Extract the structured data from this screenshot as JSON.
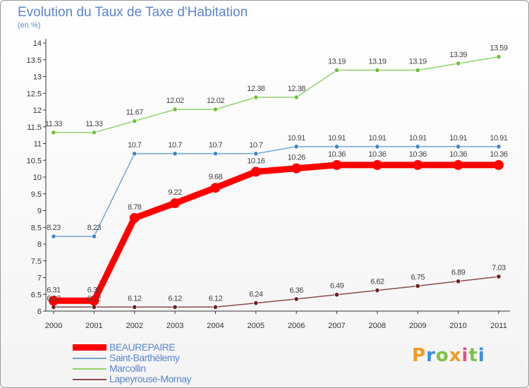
{
  "title": "Evolution du Taux de Taxe d'Habitation",
  "subtitle": "(en %)",
  "logo": {
    "text": "Proxiti",
    "letters": [
      {
        "ch": "P",
        "color": "#f39a1e"
      },
      {
        "ch": "r",
        "color": "#3a8ee0"
      },
      {
        "ch": "o",
        "color": "#7cc242"
      },
      {
        "ch": "x",
        "color": "#f39a1e"
      },
      {
        "ch": "i",
        "color": "#e84d8a"
      },
      {
        "ch": "t",
        "color": "#7cc242"
      },
      {
        "ch": "i",
        "color": "#3a8ee0"
      }
    ]
  },
  "chart_data": {
    "type": "line",
    "title": "Evolution du Taux de Taxe d'Habitation",
    "subtitle": "(en %)",
    "xlabel": "",
    "ylabel": "",
    "x": [
      "2000",
      "2001",
      "2002",
      "2003",
      "2004",
      "2005",
      "2006",
      "2007",
      "2008",
      "2009",
      "2010",
      "2011"
    ],
    "ylim": [
      6,
      14
    ],
    "yticks": [
      6,
      6.5,
      7,
      7.5,
      8,
      8.5,
      9,
      9.5,
      10,
      10.5,
      11,
      11.5,
      12,
      12.5,
      13,
      13.5,
      14
    ],
    "grid": false,
    "legend_position": "bottom-left",
    "series": [
      {
        "name": "Marcollin",
        "color": "#8fd16a",
        "marker_color": "#6fbf3a",
        "values": [
          11.33,
          11.33,
          11.67,
          12.02,
          12.02,
          12.38,
          12.38,
          13.19,
          13.19,
          13.19,
          13.39,
          13.59
        ],
        "labels": [
          "11.33",
          "11.33",
          "11.67",
          "12.02",
          "12.02",
          "12.38",
          "12.38",
          "13.19",
          "13.19",
          "13.19",
          "13.39",
          "13.59"
        ]
      },
      {
        "name": "Saint-Barthélemy",
        "color": "#6ea6d6",
        "marker_color": "#3f86c6",
        "values": [
          8.23,
          8.23,
          10.7,
          10.7,
          10.7,
          10.7,
          10.91,
          10.91,
          10.91,
          10.91,
          10.91,
          10.91
        ],
        "labels": [
          "8.23",
          "8.23",
          "10.7",
          "10.7",
          "10.7",
          "10.7",
          "10.91",
          "10.91",
          "10.91",
          "10.91",
          "10.91",
          "10.91"
        ]
      },
      {
        "name": "Lapeyrouse-Mornay",
        "color": "#8a4a4a",
        "marker_color": "#6b1f1f",
        "values": [
          6.12,
          6.12,
          6.12,
          6.12,
          6.12,
          6.24,
          6.36,
          6.49,
          6.62,
          6.75,
          6.89,
          7.03
        ],
        "labels": [
          "6.12",
          "6.12",
          "6.12",
          "6.12",
          "6.12",
          "6.24",
          "6.36",
          "6.49",
          "6.62",
          "6.75",
          "6.89",
          "7.03"
        ]
      },
      {
        "name": "BEAUREPAIRE",
        "color": "#ff0000",
        "marker_color": "#ff0000",
        "values": [
          6.31,
          6.31,
          8.78,
          9.22,
          9.68,
          10.16,
          10.26,
          10.36,
          10.36,
          10.36,
          10.36,
          10.36
        ],
        "labels": [
          "6.31",
          "6.31",
          "8.78",
          "9.22",
          "9.68",
          "10.16",
          "10.26",
          "10.36",
          "10.36",
          "10.36",
          "10.36",
          "10.36"
        ]
      }
    ],
    "legend": [
      "BEAUREPAIRE",
      "Saint-Barthélemy",
      "Marcollin",
      "Lapeyrouse-Mornay"
    ]
  }
}
